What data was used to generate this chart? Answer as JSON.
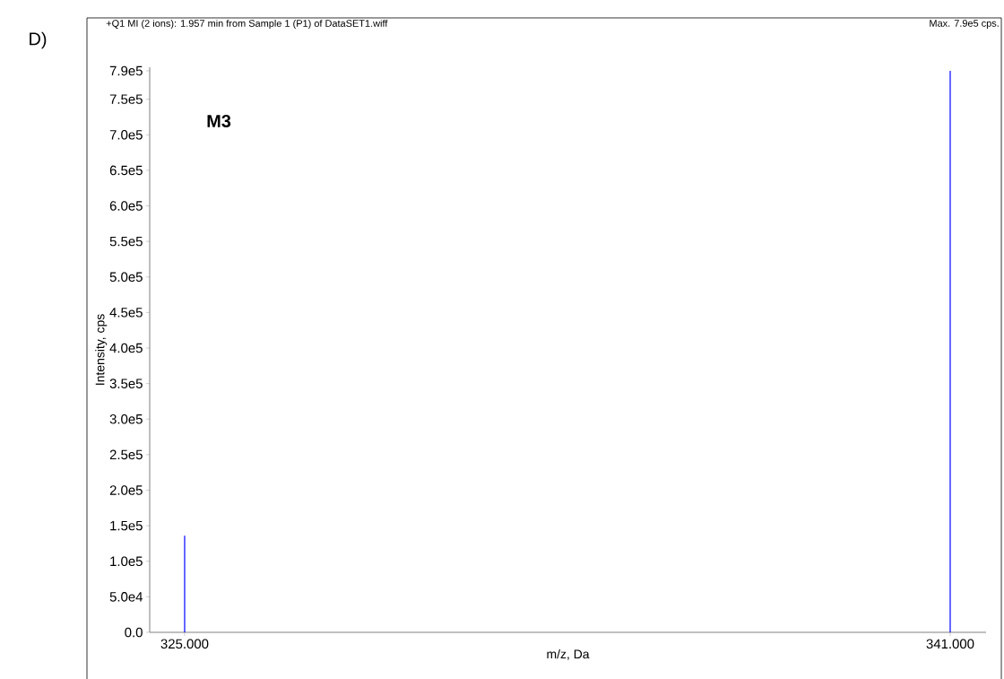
{
  "chart_data": {
    "type": "bar",
    "title": "+Q1 MI (2 ions): 1.957 min from Sample 1 (P1) of DataSET1.wiff",
    "xlabel": "m/z, Da",
    "ylabel": "Intensity, cps",
    "x": [
      325,
      341
    ],
    "values": [
      136000,
      790000
    ],
    "color": "#0000ff",
    "xlim": [
      324.27,
      341.75
    ],
    "xticks": [
      {
        "value": 325,
        "label": "325.000"
      },
      {
        "value": 341,
        "label": "341.000"
      }
    ],
    "ylim": [
      0,
      795000
    ],
    "yticks": [
      {
        "value": 0,
        "label": "0.0"
      },
      {
        "value": 50000,
        "label": "5.0e4"
      },
      {
        "value": 100000,
        "label": "1.0e5"
      },
      {
        "value": 150000,
        "label": "1.5e5"
      },
      {
        "value": 200000,
        "label": "2.0e5"
      },
      {
        "value": 250000,
        "label": "2.5e5"
      },
      {
        "value": 300000,
        "label": "3.0e5"
      },
      {
        "value": 350000,
        "label": "3.5e5"
      },
      {
        "value": 400000,
        "label": "4.0e5"
      },
      {
        "value": 450000,
        "label": "4.5e5"
      },
      {
        "value": 500000,
        "label": "5.0e5"
      },
      {
        "value": 550000,
        "label": "5.5e5"
      },
      {
        "value": 600000,
        "label": "6.0e5"
      },
      {
        "value": 650000,
        "label": "6.5e5"
      },
      {
        "value": 700000,
        "label": "7.0e5"
      },
      {
        "value": 750000,
        "label": "7.5e5"
      },
      {
        "value": 790000,
        "label": "7.9e5"
      }
    ],
    "annotations": [
      "D)",
      "M3",
      "Max. 7.9e5 cps."
    ]
  }
}
